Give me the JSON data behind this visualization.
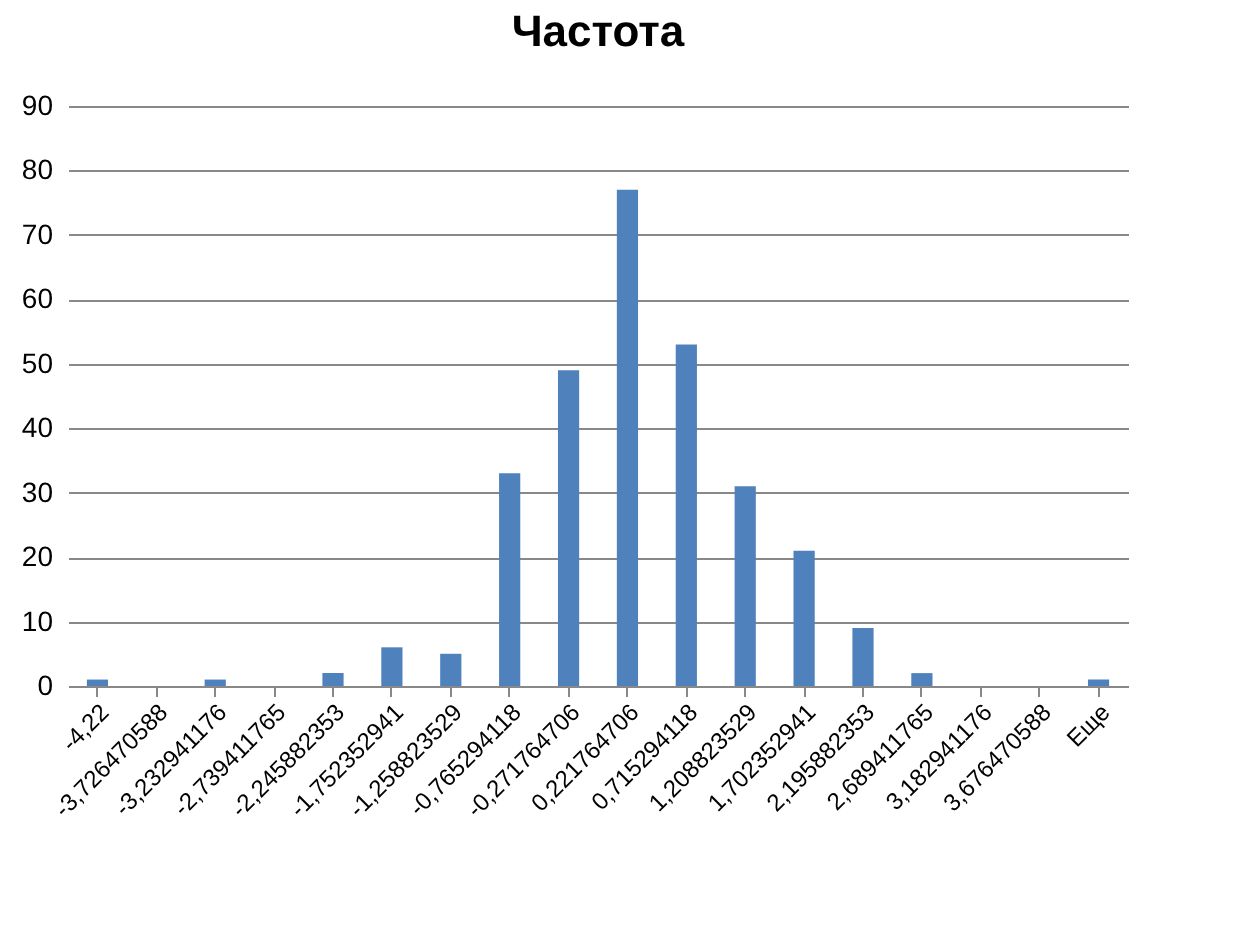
{
  "chart_data": {
    "type": "bar",
    "title": "Частота",
    "categories": [
      "-4,22",
      "-3,726470588",
      "-3,232941176",
      "-2,739411765",
      "-2,245882353",
      "-1,752352941",
      "-1,258823529",
      "-0,765294118",
      "-0,271764706",
      "0,221764706",
      "0,715294118",
      "1,208823529",
      "1,702352941",
      "2,195882353",
      "2,689411765",
      "3,182941176",
      "3,676470588",
      "Еще"
    ],
    "values": [
      1,
      0,
      1,
      0,
      2,
      6,
      5,
      33,
      49,
      77,
      53,
      31,
      21,
      9,
      2,
      0,
      0,
      1
    ],
    "color": "#4f81bd",
    "ylim": [
      0,
      90
    ],
    "yticks": [
      0,
      10,
      20,
      30,
      40,
      50,
      60,
      70,
      80,
      90
    ],
    "grid": "y"
  }
}
